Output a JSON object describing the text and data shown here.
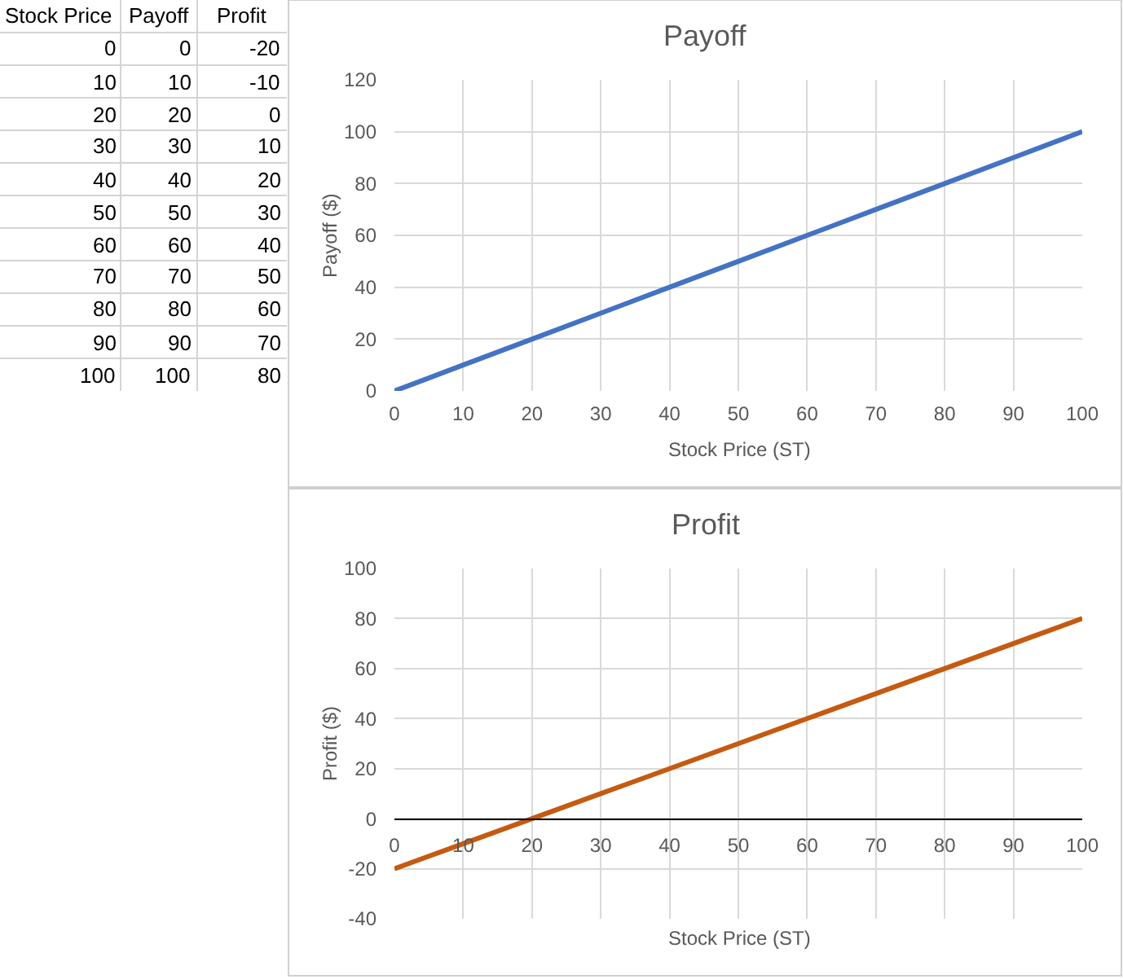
{
  "chart_data": [
    {
      "type": "heatmap",
      "ylabel": "Stock Price",
      "categories": [
        "Payoff",
        "Profit"
      ],
      "y_categories": [
        "0",
        "10",
        "20",
        "30",
        "40",
        "50",
        "60",
        "70",
        "80",
        "90",
        "100"
      ],
      "cells": [
        [
          0,
          -20
        ],
        [
          10,
          -10
        ],
        [
          20,
          0
        ],
        [
          30,
          10
        ],
        [
          40,
          20
        ],
        [
          50,
          30
        ],
        [
          60,
          40
        ],
        [
          70,
          50
        ],
        [
          80,
          60
        ],
        [
          90,
          70
        ],
        [
          100,
          80
        ]
      ],
      "data_labels": true
    },
    {
      "type": "line",
      "title": "Payoff",
      "xlabel": "Stock Price (ST)",
      "ylabel": "Payoff ($)",
      "x": [
        0,
        10,
        20,
        30,
        40,
        50,
        60,
        70,
        80,
        90,
        100
      ],
      "series": [
        {
          "color": "#4472c4",
          "values": [
            0,
            10,
            20,
            30,
            40,
            50,
            60,
            70,
            80,
            90,
            100
          ]
        }
      ],
      "xlim": [
        0,
        100
      ],
      "xticks": [
        0,
        10,
        20,
        30,
        40,
        50,
        60,
        70,
        80,
        90,
        100
      ],
      "ylim": [
        0,
        120
      ],
      "yticks": [
        0,
        20,
        40,
        60,
        80,
        100,
        120
      ],
      "grid": true,
      "line_style": "solid"
    },
    {
      "type": "line",
      "title": "Profit",
      "xlabel": "Stock Price (ST)",
      "ylabel": "Profit ($)",
      "x": [
        0,
        10,
        20,
        30,
        40,
        50,
        60,
        70,
        80,
        90,
        100
      ],
      "series": [
        {
          "color": "#c55a11",
          "values": [
            -20,
            -10,
            0,
            10,
            20,
            30,
            40,
            50,
            60,
            70,
            80
          ]
        }
      ],
      "xlim": [
        0,
        100
      ],
      "xticks": [
        0,
        10,
        20,
        30,
        40,
        50,
        60,
        70,
        80,
        90,
        100
      ],
      "ylim": [
        -40,
        100
      ],
      "yticks": [
        -40,
        -20,
        0,
        20,
        40,
        60,
        80,
        100
      ],
      "grid": true,
      "line_style": "solid"
    }
  ]
}
